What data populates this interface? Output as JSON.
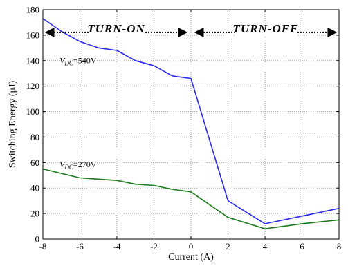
{
  "chart_data": {
    "type": "line",
    "title": "",
    "xlabel": "Current (A)",
    "ylabel": "Switching Energy (μJ)",
    "xlim": [
      -8,
      8
    ],
    "ylim": [
      0,
      180
    ],
    "xticks": [
      -8,
      -6,
      -4,
      -2,
      0,
      2,
      4,
      6,
      8
    ],
    "yticks": [
      0,
      20,
      40,
      60,
      80,
      100,
      120,
      140,
      160,
      180
    ],
    "grid": true,
    "series": [
      {
        "color": "#2a2aee",
        "label_prefix": "V",
        "label_sub": "DC",
        "label_suffix": "=540V",
        "x": [
          -8,
          -7,
          -6,
          -5,
          -4,
          -3,
          -2,
          -1,
          0,
          2,
          4,
          6,
          8
        ],
        "y": [
          173,
          163,
          155,
          150,
          148,
          140,
          136,
          128,
          126,
          30,
          12,
          18,
          24
        ]
      },
      {
        "color": "#1a7a1a",
        "label_prefix": "V",
        "label_sub": "DC",
        "label_suffix": "=270V",
        "x": [
          -8,
          -6,
          -4,
          -3,
          -2,
          -1,
          0,
          2,
          4,
          6,
          8
        ],
        "y": [
          55,
          48,
          46,
          43,
          42,
          39,
          37,
          17,
          8,
          12,
          15
        ]
      }
    ],
    "regions": [
      {
        "label": "TURN-ON",
        "x_from": -8,
        "x_to": 0
      },
      {
        "label": "TURN-OFF",
        "x_from": 0,
        "x_to": 8
      }
    ]
  }
}
